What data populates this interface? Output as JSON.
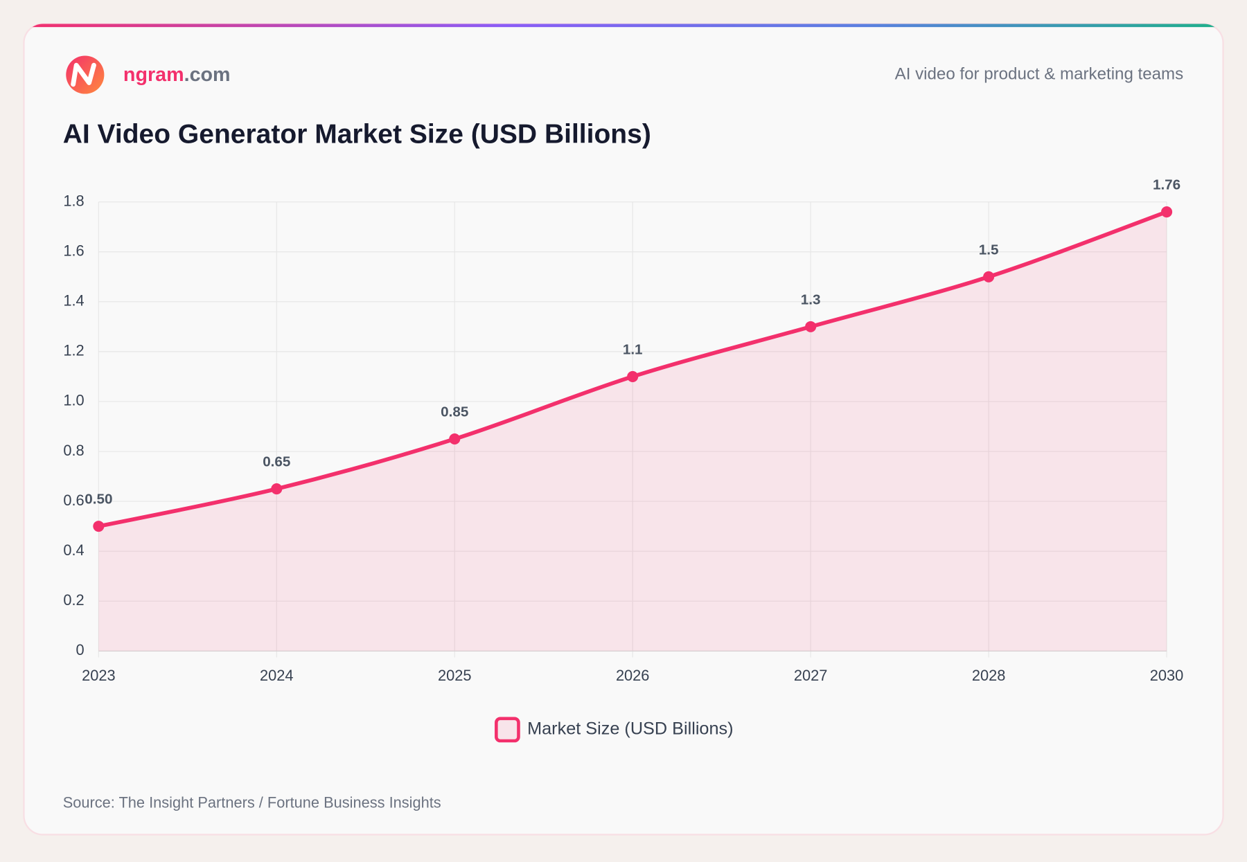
{
  "header": {
    "brand_name": "ngram",
    "brand_domain": ".com",
    "tagline": "AI video for product & marketing teams"
  },
  "chart_data": {
    "type": "line",
    "title": "AI Video Generator Market Size (USD Billions)",
    "categories": [
      "2023",
      "2024",
      "2025",
      "2026",
      "2027",
      "2028",
      "2030"
    ],
    "series": [
      {
        "name": "Market Size (USD Billions)",
        "color": "#f3306c",
        "fill": "rgba(243,48,108,0.1)",
        "values": [
          0.5,
          0.65,
          0.85,
          1.1,
          1.3,
          1.5,
          1.76
        ],
        "value_labels": [
          "0.50",
          "0.65",
          "0.85",
          "1.1",
          "1.3",
          "1.5",
          "1.76"
        ]
      }
    ],
    "ylim": [
      0,
      1.8
    ],
    "yticks": [
      0,
      0.2,
      0.4,
      0.6,
      0.8,
      {
        "value": 1,
        "label": "1.0"
      },
      1.2,
      1.4,
      1.6,
      1.8
    ],
    "grid": true,
    "legend": "bottom"
  },
  "footer": {
    "source": "Source: The Insight Partners / Fortune Business Insights"
  }
}
